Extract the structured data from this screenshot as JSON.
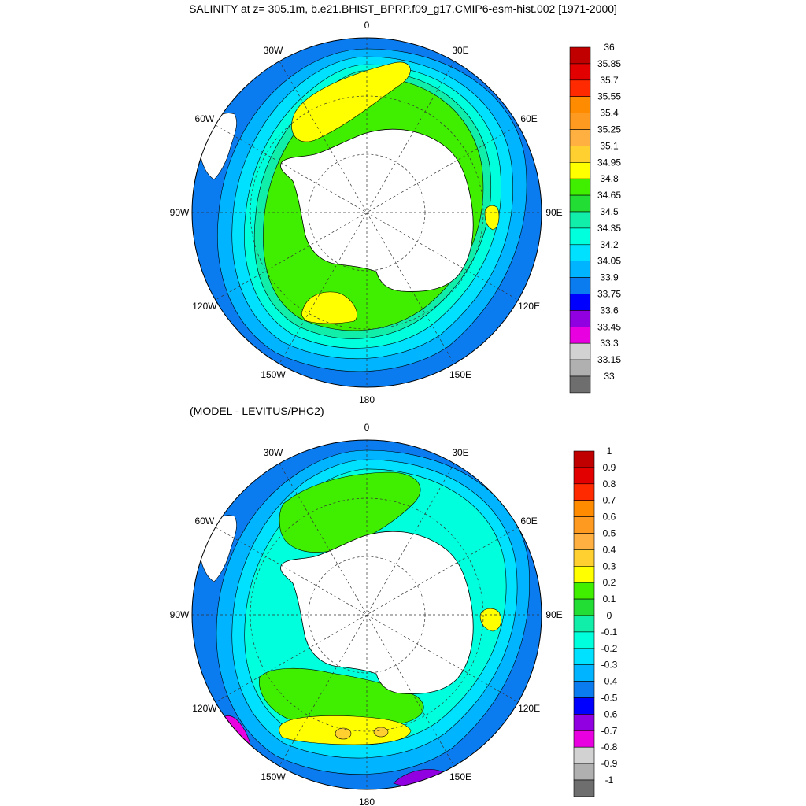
{
  "titles": {
    "main": "SALINITY at z= 305.1m, b.e21.BHIST_BPRP.f09_g17.CMIP6-esm-hist.002 [1971-2000]",
    "diff": "(MODEL - LEVITUS/PHC2)"
  },
  "longitude_labels": [
    "0",
    "30E",
    "60E",
    "90E",
    "120E",
    "150E",
    "180",
    "150W",
    "120W",
    "90W",
    "60W",
    "30W"
  ],
  "maps": [
    {
      "id": "salinity",
      "colorbar": {
        "labels": [
          "36",
          "35.85",
          "35.7",
          "35.55",
          "35.4",
          "35.25",
          "35.1",
          "34.95",
          "34.8",
          "34.65",
          "34.5",
          "34.35",
          "34.2",
          "34.05",
          "33.9",
          "33.75",
          "33.6",
          "33.45",
          "33.3",
          "33.15",
          "33"
        ],
        "colors": [
          "#c00000",
          "#e20000",
          "#ff2a00",
          "#ff8c00",
          "#ff9a20",
          "#ffb040",
          "#ffd030",
          "#ffff00",
          "#40ee00",
          "#22dd33",
          "#11eeaa",
          "#00ffdd",
          "#00e0ff",
          "#00b4ff",
          "#0a7cf0",
          "#0000ff",
          "#9000e0",
          "#e800e0",
          "#d2d2d2",
          "#b0b0b0",
          "#6e6e6e"
        ]
      }
    },
    {
      "id": "difference",
      "colorbar": {
        "labels": [
          "1",
          "0.9",
          "0.8",
          "0.7",
          "0.6",
          "0.5",
          "0.4",
          "0.3",
          "0.2",
          "0.1",
          "0",
          "-0.1",
          "-0.2",
          "-0.3",
          "-0.4",
          "-0.5",
          "-0.6",
          "-0.7",
          "-0.8",
          "-0.9",
          "-1"
        ],
        "colors": [
          "#c00000",
          "#e20000",
          "#ff2a00",
          "#ff8c00",
          "#ff9a20",
          "#ffb040",
          "#ffd030",
          "#ffff00",
          "#40ee00",
          "#22dd33",
          "#11eeaa",
          "#00ffdd",
          "#00e0ff",
          "#00b4ff",
          "#0a7cf0",
          "#0000ff",
          "#9000e0",
          "#e800e0",
          "#d2d2d2",
          "#b0b0b0",
          "#6e6e6e"
        ]
      }
    }
  ]
}
